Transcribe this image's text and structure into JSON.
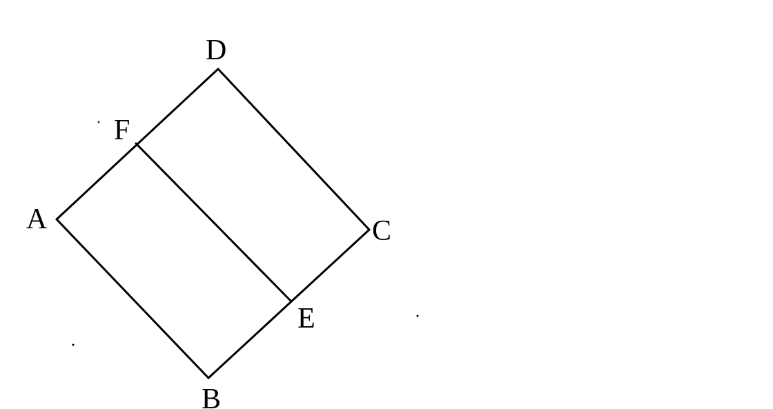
{
  "figure": {
    "points": {
      "A": "A",
      "B": "B",
      "C": "C",
      "D": "D",
      "E": "E",
      "F": "F"
    },
    "colors": {
      "stroke": "#000000",
      "background": "#ffffff"
    }
  }
}
